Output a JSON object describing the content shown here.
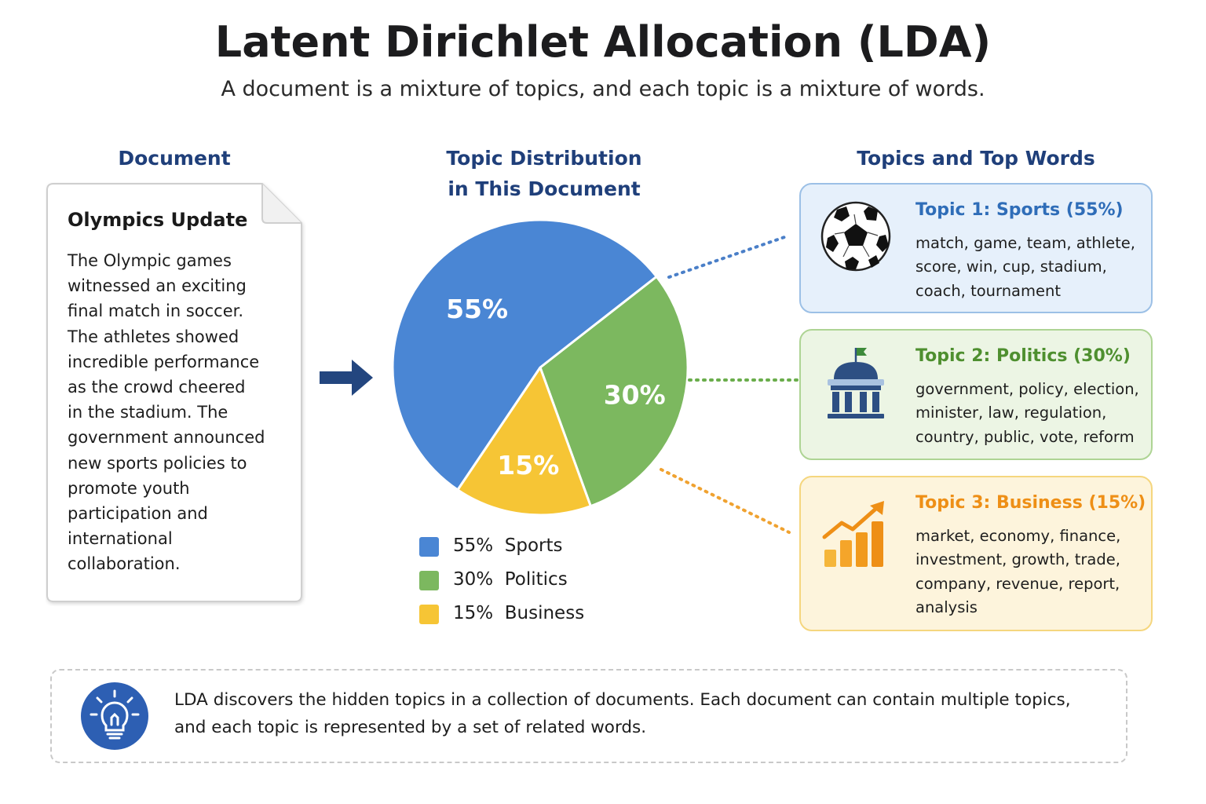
{
  "title": "Latent Dirichlet Allocation (LDA)",
  "subtitle": "A document is a mixture of topics, and each topic is a mixture of words.",
  "columns": {
    "document_heading": "Document",
    "distribution_heading_line1": "Topic Distribution",
    "distribution_heading_line2": "in This Document",
    "topics_heading": "Topics and Top Words"
  },
  "document": {
    "title": "Olympics Update",
    "lines": [
      "The Olympic games",
      "witnessed an exciting",
      "final match in soccer.",
      "The athletes showed",
      "incredible performance",
      "as the crowd cheered",
      "in the stadium. The",
      "government announced",
      "new sports policies to",
      "promote youth",
      "participation and",
      "international",
      "collaboration."
    ]
  },
  "chart_data": {
    "type": "pie",
    "slices": [
      {
        "label": "Sports",
        "value": 55,
        "display": "55%",
        "color": "#4a86d4"
      },
      {
        "label": "Politics",
        "value": 30,
        "display": "30%",
        "color": "#7cb85f"
      },
      {
        "label": "Business",
        "value": 15,
        "display": "15%",
        "color": "#f6c535"
      }
    ],
    "legend": [
      {
        "percent": "55%",
        "label": "Sports",
        "color": "#4a86d4"
      },
      {
        "percent": "30%",
        "label": "Politics",
        "color": "#7cb85f"
      },
      {
        "percent": "15%",
        "label": "Business",
        "color": "#f6c535"
      }
    ],
    "legend_placement": "bottom"
  },
  "topics": [
    {
      "title": "Topic 1: Sports (55%)",
      "words_lines": [
        "match, game, team, athlete,",
        "score, win, cup, stadium,",
        "coach, tournament"
      ],
      "icon": "soccer-ball-icon",
      "accent": "#2f6db8",
      "background": "#e6f0fb",
      "border": "#9cc0e6"
    },
    {
      "title": "Topic 2: Politics (30%)",
      "words_lines": [
        "government, policy, election,",
        "minister, law, regulation,",
        "country, public, vote, reform"
      ],
      "icon": "government-building-icon",
      "accent": "#4e8f2f",
      "background": "#ecf5e4",
      "border": "#aed494"
    },
    {
      "title": "Topic 3: Business (15%)",
      "words_lines": [
        "market, economy, finance,",
        "investment, growth, trade,",
        "company, revenue, report,",
        "analysis"
      ],
      "icon": "growth-chart-icon",
      "accent": "#ee8f16",
      "background": "#fdf4dc",
      "border": "#f5d67e"
    }
  ],
  "footer": {
    "icon": "lightbulb-icon",
    "lines": [
      "LDA discovers the hidden topics in a collection of documents. Each document can contain multiple topics,",
      "and each topic is represented by a set of related words."
    ]
  }
}
